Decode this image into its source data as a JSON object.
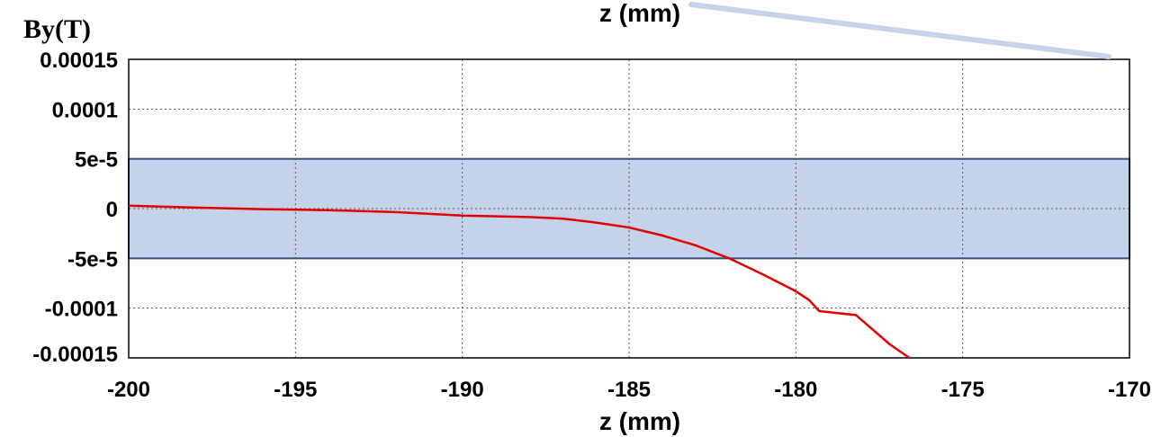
{
  "chart_data": {
    "type": "line",
    "xlabel_top": "z (mm)",
    "xlabel": "z (mm)",
    "ylabel": "By(T)",
    "xlim": [
      -200,
      -170
    ],
    "ylim": [
      -0.00015,
      0.00015
    ],
    "x_ticks": [
      {
        "value": -200,
        "label": "-200"
      },
      {
        "value": -195,
        "label": "-195"
      },
      {
        "value": -190,
        "label": "-190"
      },
      {
        "value": -185,
        "label": "-185"
      },
      {
        "value": -180,
        "label": "-180"
      },
      {
        "value": -175,
        "label": "-175"
      },
      {
        "value": -170,
        "label": "-170"
      }
    ],
    "y_ticks": [
      {
        "value": 0.00015,
        "label": "0.00015"
      },
      {
        "value": 0.0001,
        "label": "0.0001"
      },
      {
        "value": 5e-05,
        "label": "5e-5"
      },
      {
        "value": 0,
        "label": "0"
      },
      {
        "value": -5e-05,
        "label": "-5e-5"
      },
      {
        "value": -0.0001,
        "label": "-0.0001"
      },
      {
        "value": -0.00015,
        "label": "-0.00015"
      }
    ],
    "grid": true,
    "band": {
      "ymin": -5e-05,
      "ymax": 5e-05,
      "color": "#c5d3ea",
      "edge": "#2f4f8a"
    },
    "colors": {
      "line": "#e00000",
      "grid": "#555555",
      "frame": "#000000",
      "pointer": "#c5d3ea"
    },
    "series": [
      {
        "x": [
          -200,
          -198,
          -196,
          -194,
          -192,
          -190,
          -188,
          -187,
          -186,
          -185,
          -184,
          -183,
          -182,
          -181,
          -180,
          -179.6,
          -179.3,
          -178.2,
          -177.2,
          -176.6
        ],
        "y": [
          3e-06,
          1e-06,
          -5e-07,
          -1.5e-06,
          -3.5e-06,
          -7e-06,
          -8.5e-06,
          -1e-05,
          -1.4e-05,
          -1.9e-05,
          -2.7e-05,
          -3.7e-05,
          -5e-05,
          -6.6e-05,
          -8.3e-05,
          -9.2e-05,
          -0.000103,
          -0.000107,
          -0.000136,
          -0.00015
        ]
      }
    ]
  }
}
